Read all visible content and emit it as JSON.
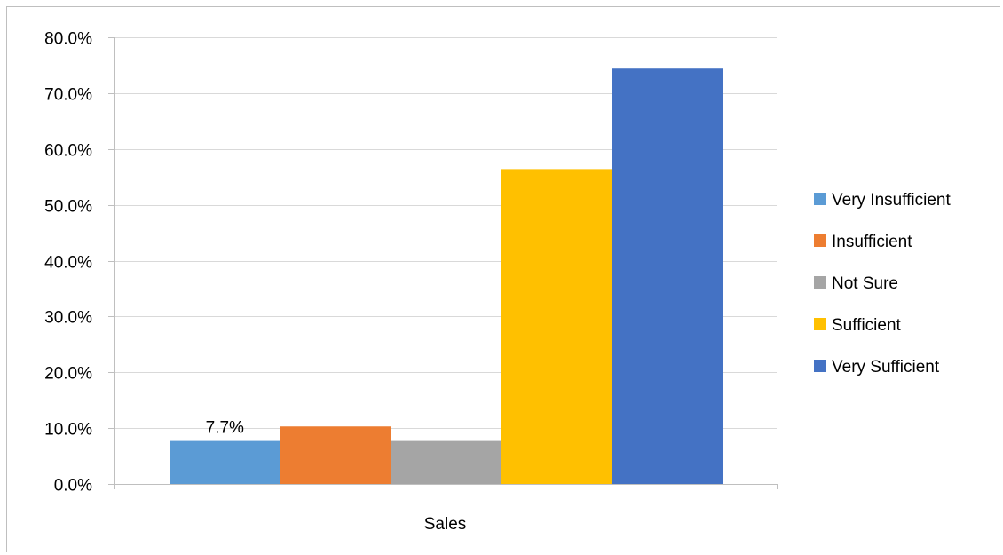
{
  "chart_data": {
    "type": "bar",
    "categories": [
      "Sales"
    ],
    "series": [
      {
        "name": "Very Insufficient",
        "values": [
          7.7
        ],
        "color": "#5b9bd5"
      },
      {
        "name": "Insufficient",
        "values": [
          10.3
        ],
        "color": "#ed7d31"
      },
      {
        "name": "Not Sure",
        "values": [
          7.7
        ],
        "color": "#a5a5a5"
      },
      {
        "name": "Sufficient",
        "values": [
          56.4
        ],
        "color": "#ffc000"
      },
      {
        "name": "Very Sufficient",
        "values": [
          74.4
        ],
        "color": "#4472c4"
      }
    ],
    "ylim": [
      0,
      80
    ],
    "yticks": [
      0,
      10,
      20,
      30,
      40,
      50,
      60,
      70,
      80
    ],
    "ytick_labels": [
      "0.0%",
      "10.0%",
      "20.0%",
      "30.0%",
      "40.0%",
      "50.0%",
      "60.0%",
      "70.0%",
      "80.0%"
    ],
    "data_labels": [
      {
        "series": 0,
        "text": "7.7%"
      }
    ],
    "grid": true,
    "legend": "right",
    "title": "",
    "xlabel": "",
    "ylabel": ""
  }
}
